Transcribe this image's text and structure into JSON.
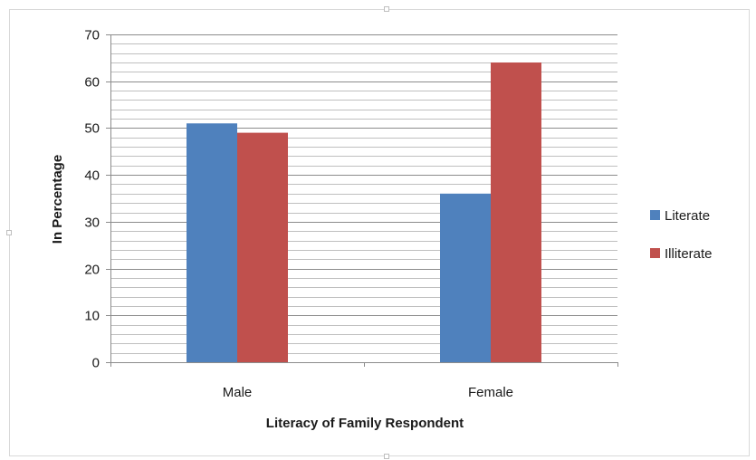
{
  "chart_data": {
    "type": "bar",
    "categories": [
      "Male",
      "Female"
    ],
    "series": [
      {
        "name": "Literate",
        "values": [
          51,
          36
        ],
        "color": "#4f81bd"
      },
      {
        "name": "Illiterate",
        "values": [
          49,
          64
        ],
        "color": "#c0504d"
      }
    ],
    "title": "",
    "xlabel": "Literacy of Family Respondent",
    "ylabel": "In Percentage",
    "ylim": [
      0,
      70
    ],
    "yticks": [
      0,
      10,
      20,
      30,
      40,
      50,
      60,
      70
    ],
    "minor_step": 2,
    "grid": true,
    "legend_position": "right"
  }
}
